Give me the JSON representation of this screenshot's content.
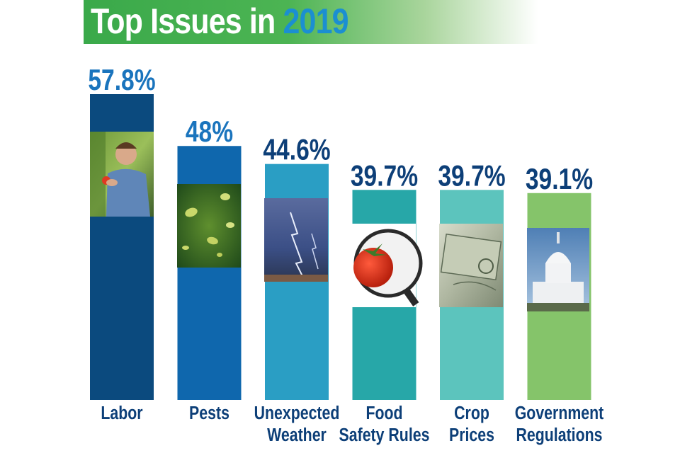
{
  "title": {
    "main": "Top Issues in ",
    "year": "2019"
  },
  "colors": {
    "banner_green": "#3aa94a",
    "year_blue": "#1b8fd1",
    "label_navy": "#0d3f78"
  },
  "chart_data": {
    "type": "bar",
    "title": "Top Issues in 2019",
    "xlabel": "",
    "ylabel": "",
    "ylim": [
      0,
      60
    ],
    "grid": false,
    "legend": "none",
    "categories": [
      [
        "Labor"
      ],
      [
        "Pests"
      ],
      [
        "Unexpected",
        "Weather"
      ],
      [
        "Food",
        "Safety Rules"
      ],
      [
        "Crop",
        "Prices"
      ],
      [
        "Government",
        "Regulations"
      ]
    ],
    "values": [
      57.8,
      48,
      44.6,
      39.7,
      39.7,
      39.1
    ],
    "value_labels": [
      "57.8%",
      "48%",
      "44.6%",
      "39.7%",
      "39.7%",
      "39.1%"
    ],
    "bar_colors": [
      "#0b4a7e",
      "#0f67ad",
      "#2a9ec4",
      "#27a7a8",
      "#5cc4bd",
      "#85c46a"
    ],
    "value_label_colors": [
      "#1a74bd",
      "#1a74bd",
      "#0d3f78",
      "#0d3f78",
      "#0d3f78",
      "#0d3f78"
    ],
    "photos": [
      "farmer-with-tomato",
      "aphids-on-leaf",
      "lightning-storm",
      "tomato-under-magnifier",
      "dollar-bill",
      "capitol-building"
    ]
  }
}
